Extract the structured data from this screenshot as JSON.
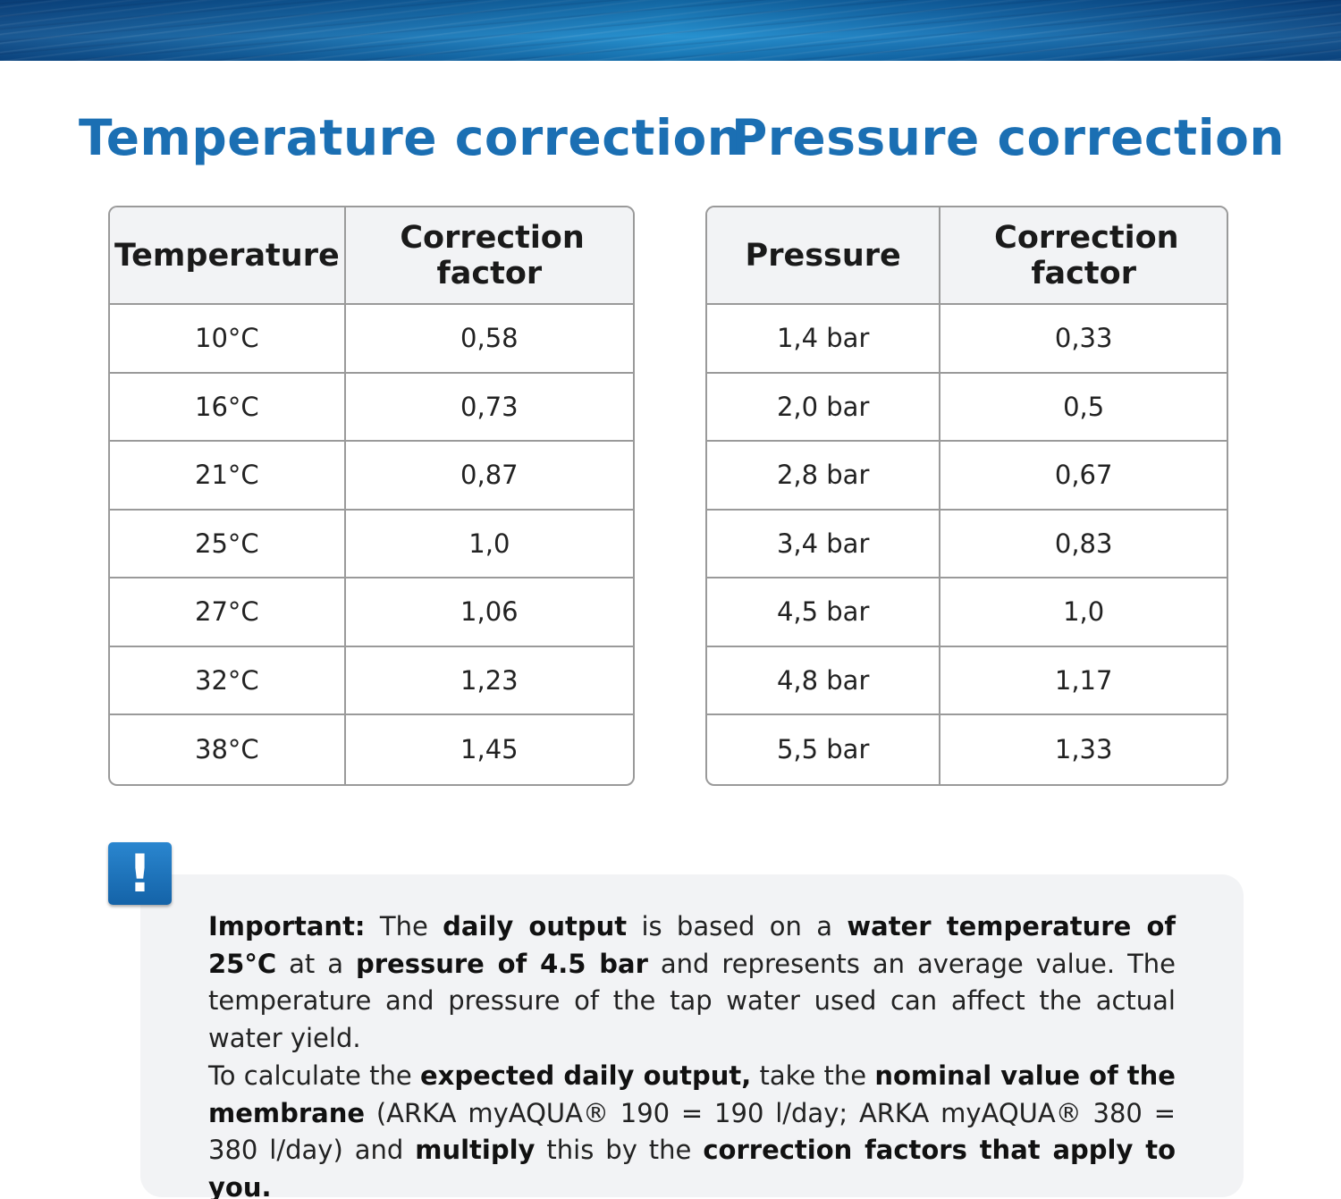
{
  "titles": {
    "temperature": "Temperature correction",
    "pressure": "Pressure correction"
  },
  "temperature_table": {
    "headers": [
      "Temperature",
      "Correction factor"
    ],
    "rows": [
      [
        "10°C",
        "0,58"
      ],
      [
        "16°C",
        "0,73"
      ],
      [
        "21°C",
        "0,87"
      ],
      [
        "25°C",
        "1,0"
      ],
      [
        "27°C",
        "1,06"
      ],
      [
        "32°C",
        "1,23"
      ],
      [
        "38°C",
        "1,45"
      ]
    ]
  },
  "pressure_table": {
    "headers": [
      "Pressure",
      "Correction factor"
    ],
    "rows": [
      [
        "1,4 bar",
        "0,33"
      ],
      [
        "2,0 bar",
        "0,5"
      ],
      [
        "2,8 bar",
        "0,67"
      ],
      [
        "3,4 bar",
        "0,83"
      ],
      [
        "4,5 bar",
        "1,0"
      ],
      [
        "4,8 bar",
        "1,17"
      ],
      [
        "5,5 bar",
        "1,33"
      ]
    ]
  },
  "alert_icon": {
    "glyph": "!",
    "icon": "exclamation-icon",
    "color": "#1b6fb3"
  },
  "note": {
    "p1": {
      "s1": "Important:",
      "s2": " The ",
      "s3": "daily output",
      "s4": " is based on a ",
      "s5": "water temperature of 25°C",
      "s6": " at a ",
      "s7": "pressure of 4.5 bar",
      "s8": " and represents an average value. The temperature and pressure of the tap water used can affect the actual water yield."
    },
    "p2": {
      "s1": "To calculate the ",
      "s2": "expected daily output,",
      "s3": " take the ",
      "s4": "nominal value of the membrane",
      "s5": " (ARKA myAQUA® 190 = 190 l/day; ARKA myAQUA® 380 = 380 l/day) and ",
      "s6": "multiply",
      "s7": " this by the ",
      "s8": "correction factors that apply to you."
    }
  },
  "colors": {
    "title_blue": "#1b6fb3",
    "header_bg": "#f2f3f5",
    "border": "#9a9a9a",
    "note_bg": "#f2f3f5"
  }
}
